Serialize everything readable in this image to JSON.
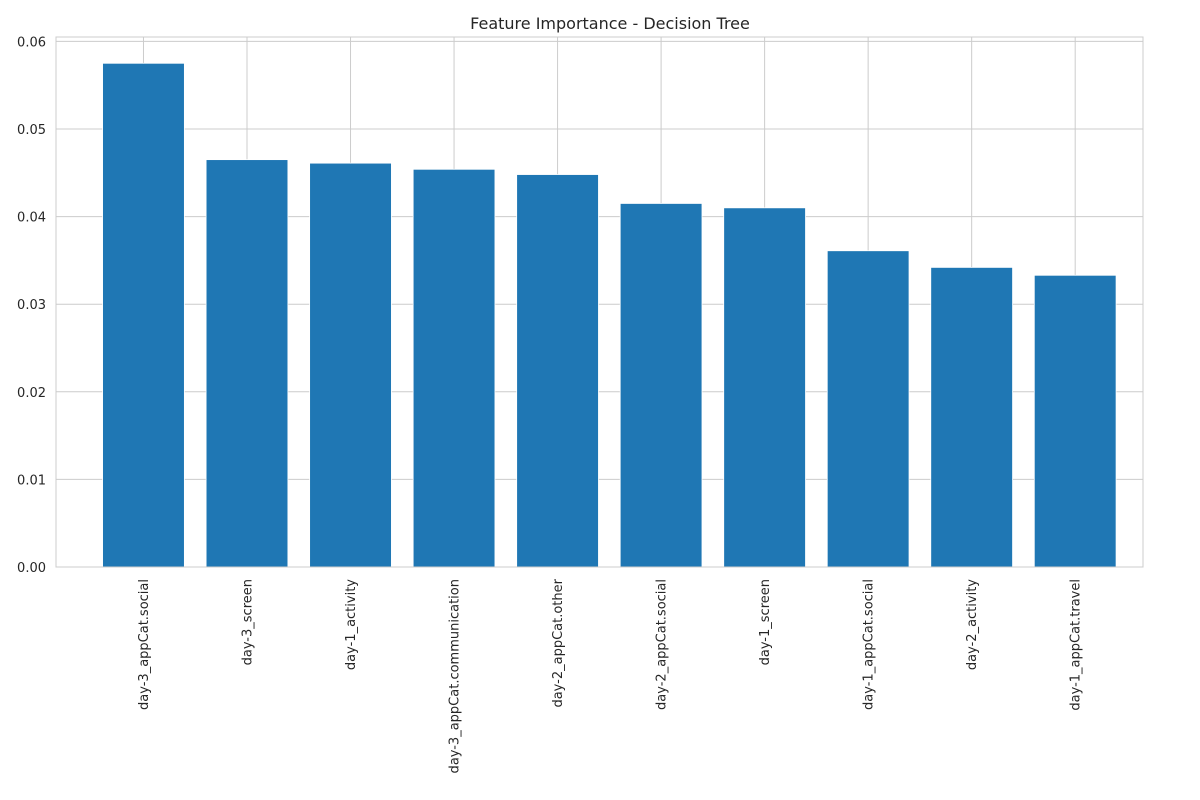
{
  "chart_data": {
    "type": "bar",
    "title": "Feature Importance - Decision Tree",
    "xlabel": "",
    "ylabel": "",
    "categories": [
      "day-3_appCat.social",
      "day-3_screen",
      "day-1_activity",
      "day-3_appCat.communication",
      "day-2_appCat.other",
      "day-2_appCat.social",
      "day-1_screen",
      "day-1_appCat.social",
      "day-2_activity",
      "day-1_appCat.travel"
    ],
    "values": [
      0.0575,
      0.0465,
      0.0461,
      0.0454,
      0.0448,
      0.0415,
      0.041,
      0.0361,
      0.0342,
      0.0333
    ],
    "ylim": [
      0,
      0.0605
    ],
    "yticks": [
      0.0,
      0.01,
      0.02,
      0.03,
      0.04,
      0.05,
      0.06
    ],
    "ytick_labels": [
      "0.00",
      "0.01",
      "0.02",
      "0.03",
      "0.04",
      "0.05",
      "0.06"
    ],
    "grid": true,
    "bar_color": "#1f77b4",
    "grid_color": "#cccccc"
  }
}
